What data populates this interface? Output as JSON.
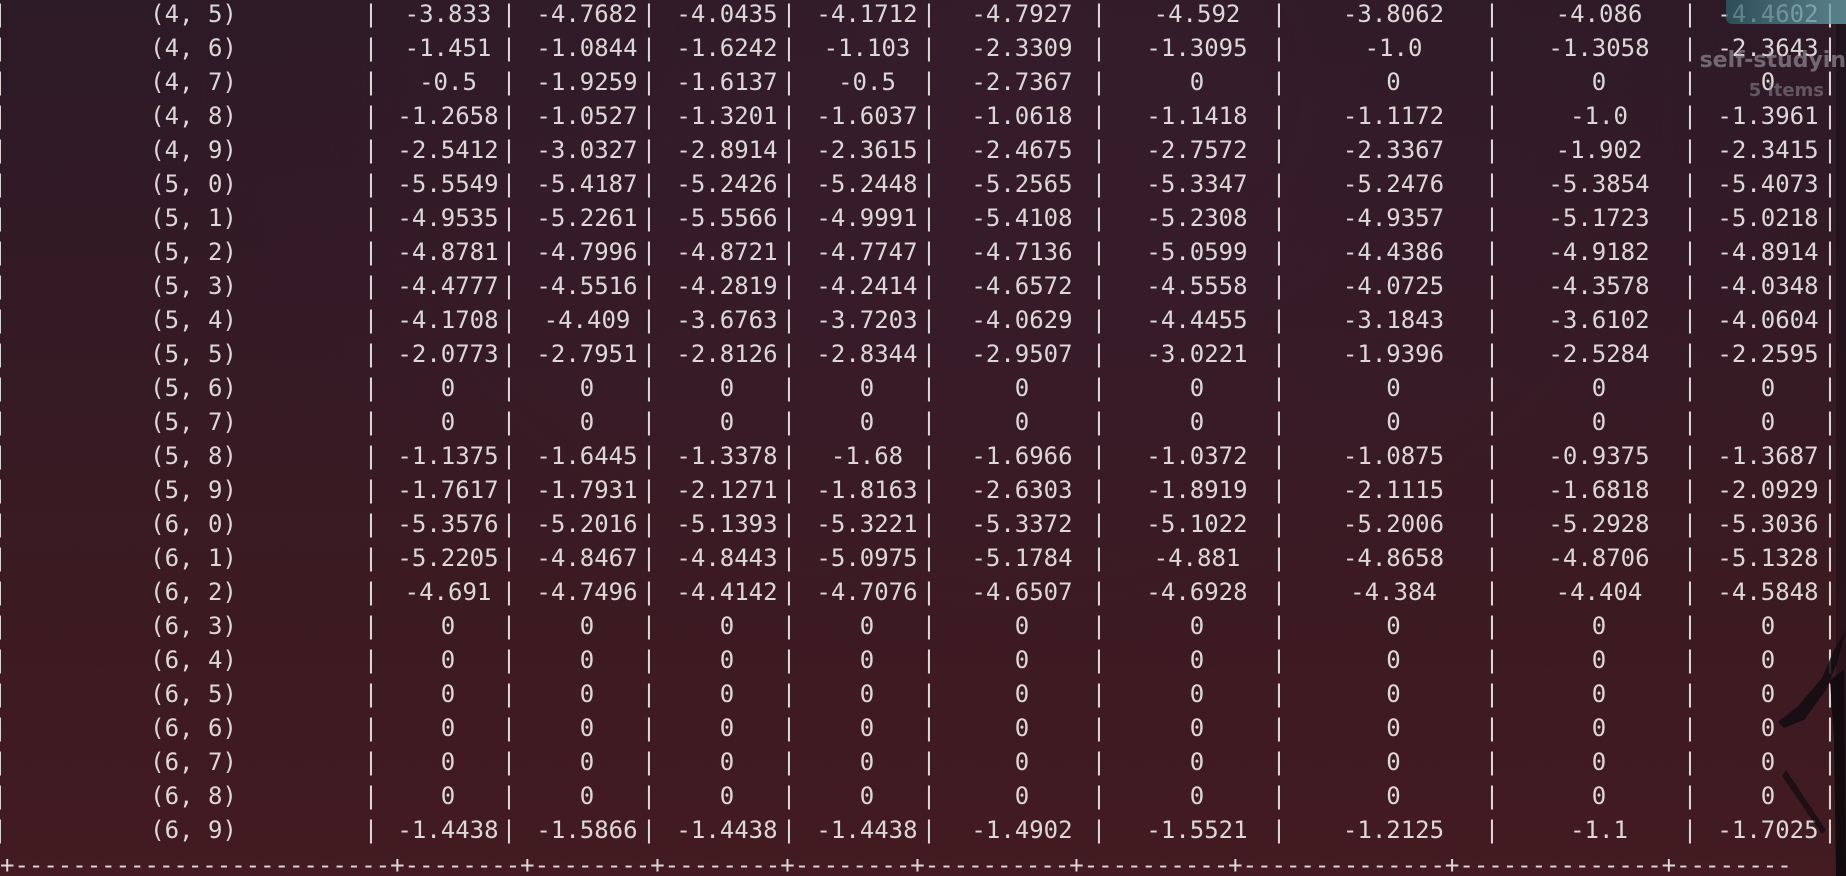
{
  "desktop": {
    "folder_name": "self-studyin",
    "folder_count": "5 items"
  },
  "table": {
    "rows": [
      {
        "key": "(4, 5)",
        "values": [
          "-3.833",
          "-4.7682",
          "-4.0435",
          "-4.1712",
          "-4.7927",
          "-4.592",
          "-3.8062",
          "-4.086",
          "-4.4602"
        ]
      },
      {
        "key": "(4, 6)",
        "values": [
          "-1.451",
          "-1.0844",
          "-1.6242",
          "-1.103",
          "-2.3309",
          "-1.3095",
          "-1.0",
          "-1.3058",
          "-2.3643"
        ]
      },
      {
        "key": "(4, 7)",
        "values": [
          "-0.5",
          "-1.9259",
          "-1.6137",
          "-0.5",
          "-2.7367",
          "0",
          "0",
          "0",
          "0"
        ]
      },
      {
        "key": "(4, 8)",
        "values": [
          "-1.2658",
          "-1.0527",
          "-1.3201",
          "-1.6037",
          "-1.0618",
          "-1.1418",
          "-1.1172",
          "-1.0",
          "-1.3961"
        ]
      },
      {
        "key": "(4, 9)",
        "values": [
          "-2.5412",
          "-3.0327",
          "-2.8914",
          "-2.3615",
          "-2.4675",
          "-2.7572",
          "-2.3367",
          "-1.902",
          "-2.3415"
        ]
      },
      {
        "key": "(5, 0)",
        "values": [
          "-5.5549",
          "-5.4187",
          "-5.2426",
          "-5.2448",
          "-5.2565",
          "-5.3347",
          "-5.2476",
          "-5.3854",
          "-5.4073"
        ]
      },
      {
        "key": "(5, 1)",
        "values": [
          "-4.9535",
          "-5.2261",
          "-5.5566",
          "-4.9991",
          "-5.4108",
          "-5.2308",
          "-4.9357",
          "-5.1723",
          "-5.0218"
        ]
      },
      {
        "key": "(5, 2)",
        "values": [
          "-4.8781",
          "-4.7996",
          "-4.8721",
          "-4.7747",
          "-4.7136",
          "-5.0599",
          "-4.4386",
          "-4.9182",
          "-4.8914"
        ]
      },
      {
        "key": "(5, 3)",
        "values": [
          "-4.4777",
          "-4.5516",
          "-4.2819",
          "-4.2414",
          "-4.6572",
          "-4.5558",
          "-4.0725",
          "-4.3578",
          "-4.0348"
        ]
      },
      {
        "key": "(5, 4)",
        "values": [
          "-4.1708",
          "-4.409",
          "-3.6763",
          "-3.7203",
          "-4.0629",
          "-4.4455",
          "-3.1843",
          "-3.6102",
          "-4.0604"
        ]
      },
      {
        "key": "(5, 5)",
        "values": [
          "-2.0773",
          "-2.7951",
          "-2.8126",
          "-2.8344",
          "-2.9507",
          "-3.0221",
          "-1.9396",
          "-2.5284",
          "-2.2595"
        ]
      },
      {
        "key": "(5, 6)",
        "values": [
          "0",
          "0",
          "0",
          "0",
          "0",
          "0",
          "0",
          "0",
          "0"
        ]
      },
      {
        "key": "(5, 7)",
        "values": [
          "0",
          "0",
          "0",
          "0",
          "0",
          "0",
          "0",
          "0",
          "0"
        ]
      },
      {
        "key": "(5, 8)",
        "values": [
          "-1.1375",
          "-1.6445",
          "-1.3378",
          "-1.68",
          "-1.6966",
          "-1.0372",
          "-1.0875",
          "-0.9375",
          "-1.3687"
        ]
      },
      {
        "key": "(5, 9)",
        "values": [
          "-1.7617",
          "-1.7931",
          "-2.1271",
          "-1.8163",
          "-2.6303",
          "-1.8919",
          "-2.1115",
          "-1.6818",
          "-2.0929"
        ]
      },
      {
        "key": "(6, 0)",
        "values": [
          "-5.3576",
          "-5.2016",
          "-5.1393",
          "-5.3221",
          "-5.3372",
          "-5.1022",
          "-5.2006",
          "-5.2928",
          "-5.3036"
        ]
      },
      {
        "key": "(6, 1)",
        "values": [
          "-5.2205",
          "-4.8467",
          "-4.8443",
          "-5.0975",
          "-5.1784",
          "-4.881",
          "-4.8658",
          "-4.8706",
          "-5.1328"
        ]
      },
      {
        "key": "(6, 2)",
        "values": [
          "-4.691",
          "-4.7496",
          "-4.4142",
          "-4.7076",
          "-4.6507",
          "-4.6928",
          "-4.384",
          "-4.404",
          "-4.5848"
        ]
      },
      {
        "key": "(6, 3)",
        "values": [
          "0",
          "0",
          "0",
          "0",
          "0",
          "0",
          "0",
          "0",
          "0"
        ]
      },
      {
        "key": "(6, 4)",
        "values": [
          "0",
          "0",
          "0",
          "0",
          "0",
          "0",
          "0",
          "0",
          "0"
        ]
      },
      {
        "key": "(6, 5)",
        "values": [
          "0",
          "0",
          "0",
          "0",
          "0",
          "0",
          "0",
          "0",
          "0"
        ]
      },
      {
        "key": "(6, 6)",
        "values": [
          "0",
          "0",
          "0",
          "0",
          "0",
          "0",
          "0",
          "0",
          "0"
        ]
      },
      {
        "key": "(6, 7)",
        "values": [
          "0",
          "0",
          "0",
          "0",
          "0",
          "0",
          "0",
          "0",
          "0"
        ]
      },
      {
        "key": "(6, 8)",
        "values": [
          "0",
          "0",
          "0",
          "0",
          "0",
          "0",
          "0",
          "0",
          "0"
        ]
      },
      {
        "key": "(6, 9)",
        "values": [
          "-1.4438",
          "-1.5866",
          "-1.4438",
          "-1.4438",
          "-1.4902",
          "-1.5521",
          "-1.2125",
          "-1.1",
          "-1.7025"
        ]
      }
    ],
    "bottom_border": "+--------------------------+--------+--------+--------+--------+----------+----------+--------------+--------------+--------"
  },
  "colors": {
    "text": "#dcd8d8",
    "background_top": "#2c1a26",
    "background_bottom": "#431b21"
  }
}
